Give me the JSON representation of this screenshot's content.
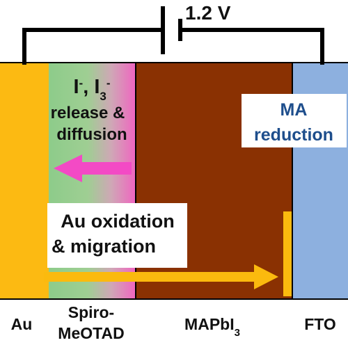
{
  "voltage": "1.2 V",
  "iodide": {
    "line1_I": "I",
    "line1_I_sup": "-",
    "line1_sep": ", I",
    "line1_I3_sub": "3",
    "line1_I3_sup": "-",
    "line2": "release &",
    "line3": "diffusion"
  },
  "ma_reduction": {
    "line1": "MA",
    "line2": "reduction"
  },
  "au_oxidation": {
    "line1": "Au oxidation",
    "line2": "& migration"
  },
  "layers": {
    "au": "Au",
    "spiro_line1": "Spiro-",
    "spiro_line2": "MeOTAD",
    "mapbi_main": "MAPbI",
    "mapbi_sub": "3",
    "fto": "FTO"
  },
  "colors": {
    "au": "#FCBA12",
    "spiro_green": "#8DCC8A",
    "spiro_pink": "#F064C0",
    "perovskite": "#8A3102",
    "fto": "#8DB0DF",
    "magenta_arrow": "#F34AC5",
    "gold_arrow": "#FBBA0E",
    "blue_text": "#1E4E8C",
    "black": "#111111"
  },
  "icons": {
    "battery": "battery-symbol-icon",
    "left_arrow": "left-arrow-icon",
    "right_arrow": "right-arrow-icon"
  }
}
